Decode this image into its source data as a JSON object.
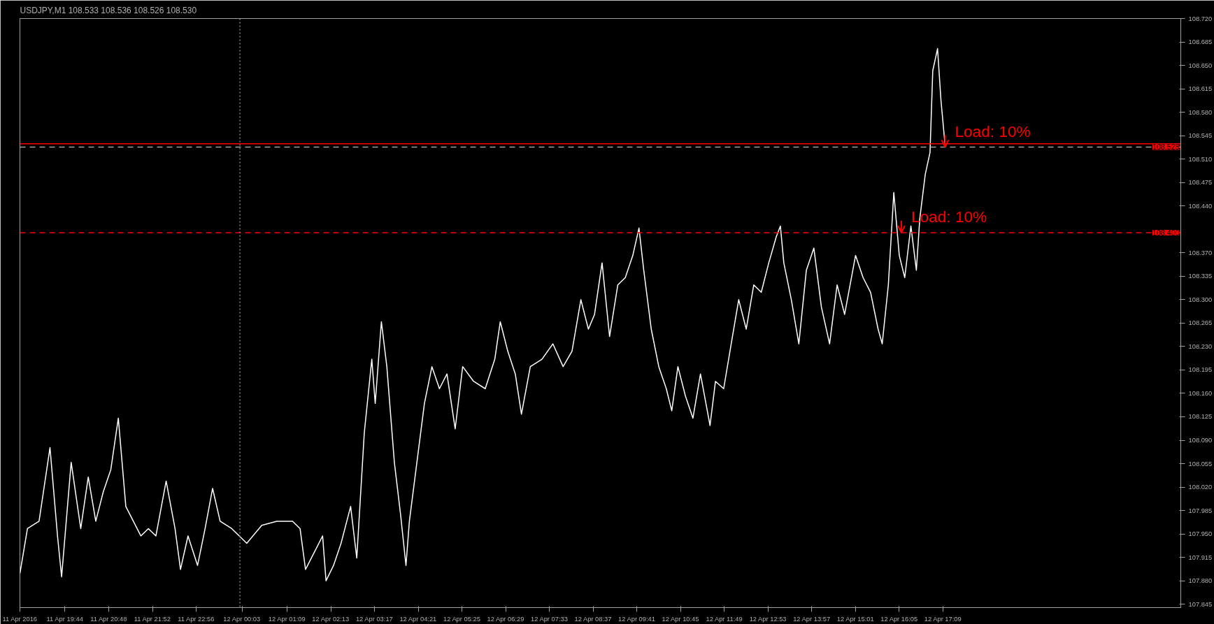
{
  "chart_data": {
    "type": "line",
    "title": "USDJPY,M1  108.533 108.536 108.526 108.530",
    "x": [
      "2016-04-11T18:38",
      "2016-04-11T18:49",
      "2016-04-11T19:06",
      "2016-04-11T19:22",
      "2016-04-11T19:33",
      "2016-04-11T19:39",
      "2016-04-11T19:53",
      "2016-04-11T20:07",
      "2016-04-11T20:18",
      "2016-04-11T20:29",
      "2016-04-11T20:40",
      "2016-04-11T20:51",
      "2016-04-11T21:02",
      "2016-04-11T21:13",
      "2016-04-11T21:24",
      "2016-04-11T21:35",
      "2016-04-11T21:46",
      "2016-04-11T21:57",
      "2016-04-11T22:12",
      "2016-04-11T22:25",
      "2016-04-11T22:33",
      "2016-04-11T22:44",
      "2016-04-11T22:58",
      "2016-04-11T23:09",
      "2016-04-11T23:20",
      "2016-04-11T23:31",
      "2016-04-11T23:48",
      "2016-04-12T00:10",
      "2016-04-12T00:32",
      "2016-04-12T00:54",
      "2016-04-12T01:17",
      "2016-04-12T01:28",
      "2016-04-12T01:36",
      "2016-04-12T01:50",
      "2016-04-12T02:01",
      "2016-04-12T02:06",
      "2016-04-12T02:17",
      "2016-04-12T02:28",
      "2016-04-12T02:42",
      "2016-04-12T02:51",
      "2016-04-12T03:02",
      "2016-04-12T03:13",
      "2016-04-12T03:18",
      "2016-04-12T03:27",
      "2016-04-12T03:35",
      "2016-04-12T03:46",
      "2016-04-12T03:55",
      "2016-04-12T04:03",
      "2016-04-12T04:08",
      "2016-04-12T04:19",
      "2016-04-12T04:30",
      "2016-04-12T04:41",
      "2016-04-12T04:52",
      "2016-04-12T05:03",
      "2016-04-12T05:15",
      "2016-04-12T05:26",
      "2016-04-12T05:42",
      "2016-04-12T05:59",
      "2016-04-12T06:13",
      "2016-04-12T06:21",
      "2016-04-12T06:32",
      "2016-04-12T06:43",
      "2016-04-12T06:52",
      "2016-04-12T07:05",
      "2016-04-12T07:22",
      "2016-04-12T07:38",
      "2016-04-12T07:53",
      "2016-04-12T08:06",
      "2016-04-12T08:19",
      "2016-04-12T08:30",
      "2016-04-12T08:39",
      "2016-04-12T08:50",
      "2016-04-12T09:01",
      "2016-04-12T09:13",
      "2016-04-12T09:24",
      "2016-04-12T09:35",
      "2016-04-12T09:44",
      "2016-04-12T09:51",
      "2016-04-12T10:02",
      "2016-04-12T10:13",
      "2016-04-12T10:24",
      "2016-04-12T10:32",
      "2016-04-12T10:41",
      "2016-04-12T10:52",
      "2016-04-12T11:03",
      "2016-04-12T11:14",
      "2016-04-12T11:28",
      "2016-04-12T11:36",
      "2016-04-12T11:48",
      "2016-04-12T11:59",
      "2016-04-12T12:10",
      "2016-04-12T12:21",
      "2016-04-12T12:32",
      "2016-04-12T12:43",
      "2016-04-12T12:54",
      "2016-04-12T13:05",
      "2016-04-12T13:11",
      "2016-04-12T13:16",
      "2016-04-12T13:27",
      "2016-04-12T13:38",
      "2016-04-12T13:49",
      "2016-04-12T14:00",
      "2016-04-12T14:11",
      "2016-04-12T14:23",
      "2016-04-12T14:34",
      "2016-04-12T14:45",
      "2016-04-12T15:01",
      "2016-04-12T15:12",
      "2016-04-12T15:23",
      "2016-04-12T15:34",
      "2016-04-12T15:40",
      "2016-04-12T15:49",
      "2016-04-12T15:57",
      "2016-04-12T16:05",
      "2016-04-12T16:13",
      "2016-04-12T16:22",
      "2016-04-12T16:30",
      "2016-04-12T16:35",
      "2016-04-12T16:43",
      "2016-04-12T16:50",
      "2016-04-12T16:54",
      "2016-04-12T17:01",
      "2016-04-12T17:06",
      "2016-04-12T17:12"
    ],
    "series": [
      {
        "color": "#ffffff",
        "values": [
          107.891,
          107.958,
          107.969,
          108.079,
          107.947,
          107.886,
          108.057,
          107.958,
          108.035,
          107.969,
          108.013,
          108.046,
          108.123,
          107.991,
          107.969,
          107.947,
          107.958,
          107.947,
          108.029,
          107.958,
          107.897,
          107.947,
          107.903,
          107.958,
          108.018,
          107.969,
          107.958,
          107.936,
          107.963,
          107.969,
          107.969,
          107.958,
          107.897,
          107.925,
          107.947,
          107.88,
          107.903,
          107.936,
          107.991,
          107.914,
          108.101,
          108.211,
          108.145,
          108.267,
          108.2,
          108.057,
          107.98,
          107.903,
          107.969,
          108.057,
          108.145,
          108.2,
          108.167,
          108.189,
          108.107,
          108.2,
          108.178,
          108.167,
          108.211,
          108.267,
          108.223,
          108.189,
          108.129,
          108.2,
          108.211,
          108.234,
          108.2,
          108.223,
          108.3,
          108.256,
          108.278,
          108.355,
          108.245,
          108.322,
          108.333,
          108.366,
          108.407,
          108.344,
          108.256,
          108.2,
          108.167,
          108.134,
          108.2,
          108.156,
          108.123,
          108.189,
          108.112,
          108.178,
          108.167,
          108.234,
          108.3,
          108.256,
          108.322,
          108.311,
          108.355,
          108.394,
          108.41,
          108.355,
          108.3,
          108.234,
          108.344,
          108.377,
          108.289,
          108.234,
          108.322,
          108.278,
          108.366,
          108.333,
          108.311,
          108.256,
          108.234,
          108.322,
          108.46,
          108.366,
          108.333,
          108.41,
          108.344,
          108.421,
          108.487,
          108.52,
          108.642,
          108.675,
          108.598,
          108.531
        ]
      }
    ],
    "xlim": [
      "2016-04-11T18:38",
      "2016-04-12T22:57"
    ],
    "ylim": [
      107.84,
      108.72
    ],
    "xticks": [
      {
        "value": "2016-04-11T18:38",
        "label": "11 Apr 2016"
      },
      {
        "value": "2016-04-11T19:44",
        "label": "11 Apr 19:44"
      },
      {
        "value": "2016-04-11T20:48",
        "label": "11 Apr 20:48"
      },
      {
        "value": "2016-04-11T21:52",
        "label": "11 Apr 21:52"
      },
      {
        "value": "2016-04-11T22:56",
        "label": "11 Apr 22:56"
      },
      {
        "value": "2016-04-12T00:03",
        "label": "12 Apr 00:03"
      },
      {
        "value": "2016-04-12T01:09",
        "label": "12 Apr 01:09"
      },
      {
        "value": "2016-04-12T02:13",
        "label": "12 Apr 02:13"
      },
      {
        "value": "2016-04-12T03:17",
        "label": "12 Apr 03:17"
      },
      {
        "value": "2016-04-12T04:21",
        "label": "12 Apr 04:21"
      },
      {
        "value": "2016-04-12T05:25",
        "label": "12 Apr 05:25"
      },
      {
        "value": "2016-04-12T06:29",
        "label": "12 Apr 06:29"
      },
      {
        "value": "2016-04-12T07:33",
        "label": "12 Apr 07:33"
      },
      {
        "value": "2016-04-12T08:37",
        "label": "12 Apr 08:37"
      },
      {
        "value": "2016-04-12T09:41",
        "label": "12 Apr 09:41"
      },
      {
        "value": "2016-04-12T10:45",
        "label": "12 Apr 10:45"
      },
      {
        "value": "2016-04-12T11:49",
        "label": "12 Apr 11:49"
      },
      {
        "value": "2016-04-12T12:53",
        "label": "12 Apr 12:53"
      },
      {
        "value": "2016-04-12T13:57",
        "label": "12 Apr 13:57"
      },
      {
        "value": "2016-04-12T15:01",
        "label": "12 Apr 15:01"
      },
      {
        "value": "2016-04-12T16:05",
        "label": "12 Apr 16:05"
      },
      {
        "value": "2016-04-12T17:09",
        "label": "12 Apr 17:09"
      }
    ],
    "yticks": [
      {
        "value": 107.845,
        "label": "107.845"
      },
      {
        "value": 107.88,
        "label": "107.880"
      },
      {
        "value": 107.915,
        "label": "107.915"
      },
      {
        "value": 107.95,
        "label": "107.950"
      },
      {
        "value": 107.985,
        "label": "107.985"
      },
      {
        "value": 108.02,
        "label": "108.020"
      },
      {
        "value": 108.055,
        "label": "108.055"
      },
      {
        "value": 108.09,
        "label": "108.090"
      },
      {
        "value": 108.125,
        "label": "108.125"
      },
      {
        "value": 108.16,
        "label": "108.160"
      },
      {
        "value": 108.195,
        "label": "108.195"
      },
      {
        "value": 108.23,
        "label": "108.230"
      },
      {
        "value": 108.265,
        "label": "108.265"
      },
      {
        "value": 108.3,
        "label": "108.300"
      },
      {
        "value": 108.335,
        "label": "108.335"
      },
      {
        "value": 108.37,
        "label": "108.370"
      },
      {
        "value": 108.44,
        "label": "108.440"
      },
      {
        "value": 108.475,
        "label": "108.475"
      },
      {
        "value": 108.51,
        "label": "108.510"
      },
      {
        "value": 108.545,
        "label": "108.545"
      },
      {
        "value": 108.58,
        "label": "108.580"
      },
      {
        "value": 108.615,
        "label": "108.615"
      },
      {
        "value": 108.65,
        "label": "108.650"
      },
      {
        "value": 108.685,
        "label": "108.685"
      },
      {
        "value": 108.72,
        "label": "108.720"
      }
    ],
    "ref_lines": [
      {
        "axis": "y",
        "value": 108.533,
        "label": null,
        "color": "#ff0000",
        "line_style": "solid"
      },
      {
        "axis": "y",
        "value": 108.528,
        "label": "108.528",
        "color": "#a0a0a0",
        "line_style": "dashed"
      },
      {
        "axis": "y",
        "value": 108.4,
        "label": "108.400",
        "color": "#ff0000",
        "line_style": "dashed"
      },
      {
        "axis": "x",
        "value": "2016-04-12T00:00",
        "label": null,
        "color": "#808080",
        "line_style": "dotted"
      }
    ],
    "annotations": [
      {
        "text": "Load: 10%",
        "x": "2016-04-12T17:12",
        "y": 108.528
      },
      {
        "text": "Load: 10%",
        "x": "2016-04-12T16:08",
        "y": 108.4
      }
    ],
    "grid": false
  }
}
